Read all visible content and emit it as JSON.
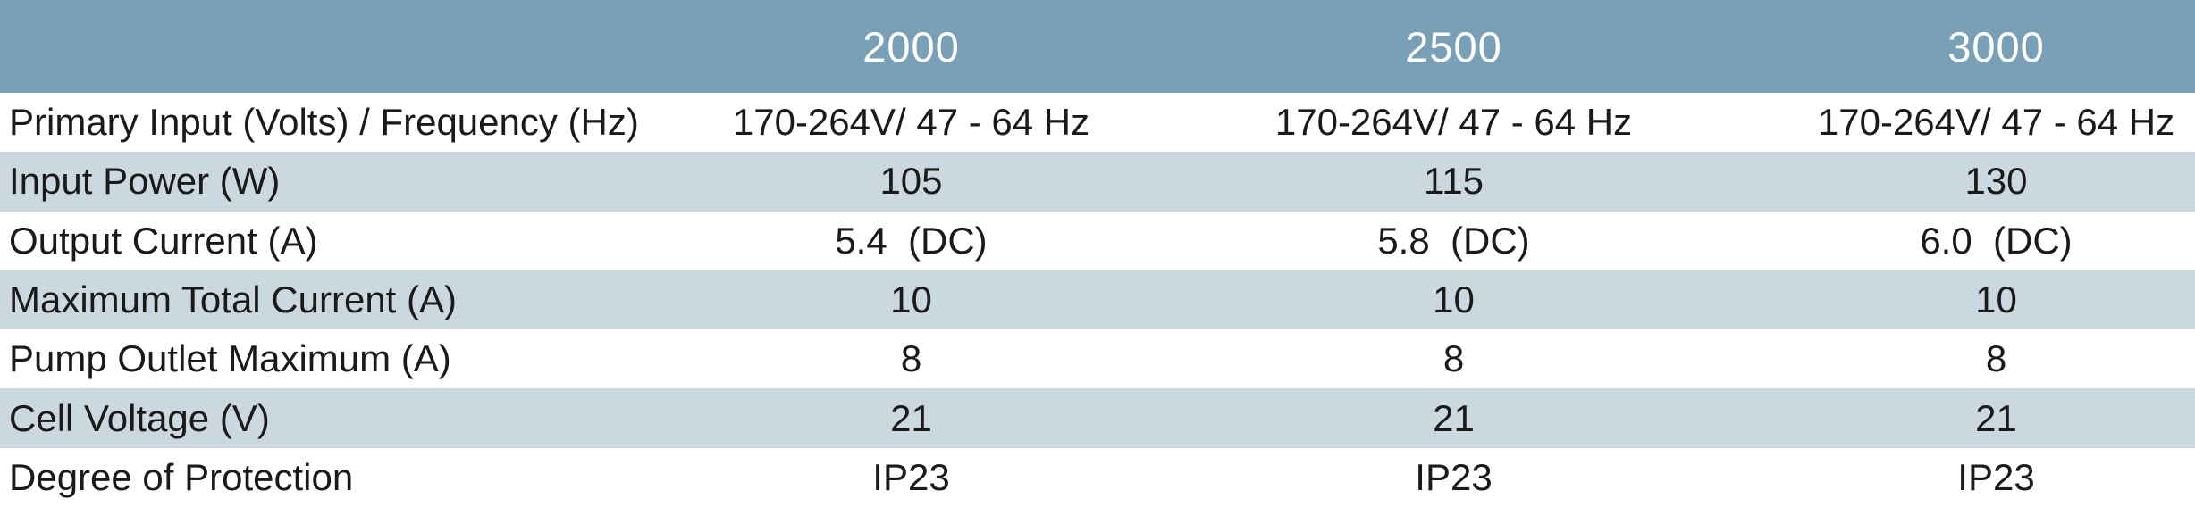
{
  "table": {
    "columns": [
      "2000",
      "2500",
      "3000"
    ],
    "rows": [
      {
        "label": "Primary Input (Volts) / Frequency (Hz)",
        "values": [
          "170-264V/ 47 - 64 Hz",
          "170-264V/ 47 - 64 Hz",
          "170-264V/ 47 - 64 Hz"
        ],
        "shaded": false
      },
      {
        "label": "Input Power (W)",
        "values": [
          "105",
          "115",
          "130"
        ],
        "shaded": true
      },
      {
        "label": "Output Current (A)",
        "values": [
          "5.4  (DC)",
          "5.8  (DC)",
          "6.0  (DC)"
        ],
        "shaded": false
      },
      {
        "label": "Maximum Total Current (A)",
        "values": [
          "10",
          "10",
          "10"
        ],
        "shaded": true
      },
      {
        "label": "Pump Outlet Maximum (A)",
        "values": [
          "8",
          "8",
          "8"
        ],
        "shaded": false
      },
      {
        "label": "Cell Voltage (V)",
        "values": [
          "21",
          "21",
          "21"
        ],
        "shaded": true
      },
      {
        "label": "Degree of Protection",
        "values": [
          "IP23",
          "IP23",
          "IP23"
        ],
        "shaded": false
      }
    ],
    "colors": {
      "header_bg": "#7aa0b8",
      "header_text": "#ffffff",
      "row_shaded_bg": "#ccd8df",
      "row_plain_bg": "#ffffff",
      "body_text": "#1a1a1a"
    }
  }
}
